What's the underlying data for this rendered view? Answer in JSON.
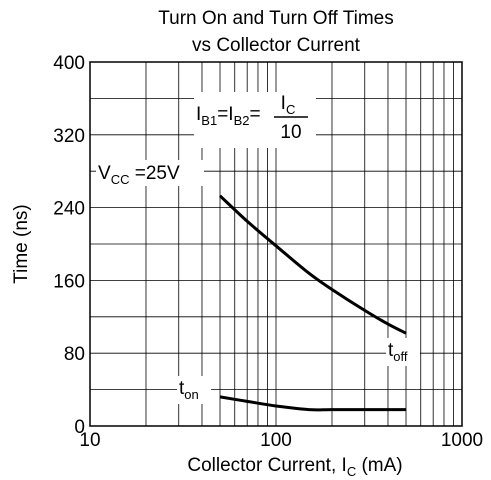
{
  "chart_data": {
    "type": "line",
    "title_line1": "Turn On and Turn Off Times",
    "title_line2": "vs Collector Current",
    "xlabel": "Collector Current, I",
    "xlabel_sub": "C",
    "xlabel_unit": " (mA)",
    "ylabel": "Time (ns)",
    "xscale": "log",
    "xlim": [
      10,
      1000
    ],
    "ylim": [
      0,
      400
    ],
    "grid": true,
    "x_ticks": [
      10,
      100,
      1000
    ],
    "x_tick_labels": [
      "10",
      "100",
      "1000"
    ],
    "y_ticks": [
      0,
      80,
      160,
      240,
      320,
      400
    ],
    "y_tick_labels": [
      "0",
      "80",
      "160",
      "240",
      "320",
      "400"
    ],
    "series": [
      {
        "name": "t_off",
        "label_main": "t",
        "label_sub": "off",
        "x": [
          50,
          70,
          100,
          150,
          200,
          300,
          400,
          500
        ],
        "y": [
          253,
          225,
          198,
          168,
          150,
          127,
          112,
          102
        ]
      },
      {
        "name": "t_on",
        "label_main": "t",
        "label_sub": "on",
        "x": [
          50,
          70,
          100,
          150,
          200,
          300,
          400,
          500
        ],
        "y": [
          32,
          27,
          22,
          18,
          18,
          18,
          18,
          18
        ]
      }
    ],
    "annotations": {
      "condition_ib": {
        "i": "I",
        "b1": "B1",
        "eq1": "=I",
        "b2": "B2",
        "eq2": "=",
        "num": "I",
        "num_sub": "C",
        "den": "10"
      },
      "condition_vcc": {
        "v": "V",
        "sub": "CC",
        "rest": " =25V"
      }
    }
  }
}
